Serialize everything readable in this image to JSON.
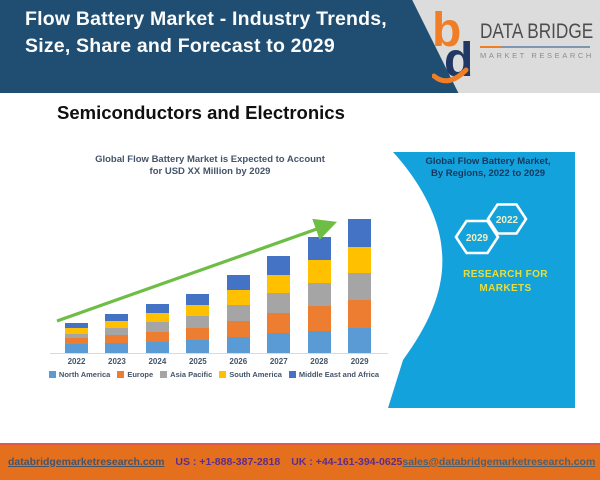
{
  "header": {
    "bg_color": "#1F4E72",
    "title": "Flow Battery Market - Industry Trends, Size, Share and Forecast to 2029",
    "logo": {
      "brand": "DATA BRIDGE",
      "tagline": "MARKET RESEARCH",
      "mark_colors": {
        "b": "#F07E26",
        "d": "#1F3864"
      }
    }
  },
  "category_heading": "Semiconductors and Electronics",
  "chart_data": {
    "type": "bar",
    "stacked": true,
    "title": "Global Flow Battery Market is Expected to Account for USD XX Million by 2029",
    "title_line1": "Global Flow Battery Market is Expected to Account",
    "title_line2": "for USD XX Million by 2029",
    "categories": [
      "2022",
      "2023",
      "2024",
      "2025",
      "2026",
      "2027",
      "2028",
      "2029"
    ],
    "series": [
      {
        "name": "North America",
        "color": "#5B9BD5",
        "values": [
          9,
          10,
          11,
          13,
          16,
          20,
          22,
          25
        ]
      },
      {
        "name": "Europe",
        "color": "#ED7D31",
        "values": [
          6,
          8,
          10,
          12,
          16,
          20,
          25,
          28
        ]
      },
      {
        "name": "Asia Pacific",
        "color": "#A5A5A5",
        "values": [
          4.5,
          7.5,
          10,
          12,
          16,
          20,
          23,
          27
        ]
      },
      {
        "name": "South America",
        "color": "#FFC000",
        "values": [
          5.5,
          7,
          9,
          11,
          15,
          18.5,
          23,
          26
        ]
      },
      {
        "name": "Middle East and Africa",
        "color": "#4472C4",
        "values": [
          5,
          6.5,
          9,
          11,
          15,
          18.5,
          23,
          28
        ]
      }
    ],
    "value_axis_visible": false,
    "gridlines": false,
    "legend_position": "bottom",
    "trend_arrow": true,
    "trend_arrow_color": "#6EBE45",
    "axis_label_color": "#44546A"
  },
  "side_panel": {
    "bg_color": "#14A2DC",
    "title_line1": "Global Flow Battery Market,",
    "title_line2": "By Regions, 2022 to 2029",
    "hex_left_label": "2029",
    "hex_right_label": "2022",
    "tagline_line1": "RESEARCH FOR",
    "tagline_line2": "MARKETS"
  },
  "footer": {
    "bg_color": "#E4701E",
    "website": "databridgemarketresearch.com",
    "us_phone": "US : +1-888-387-2818",
    "uk_phone": "UK : +44-161-394-0625",
    "email": "sales@databridgemarketresearch.com"
  }
}
